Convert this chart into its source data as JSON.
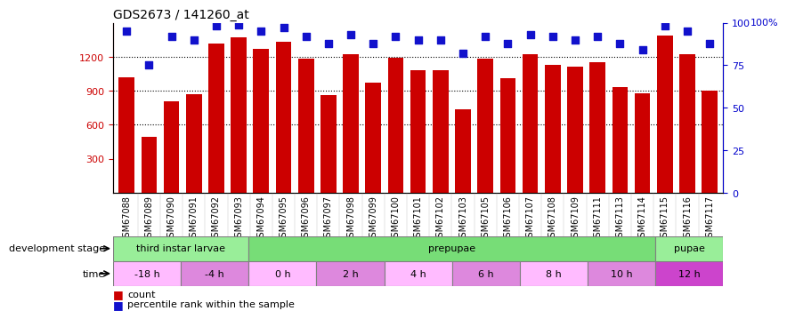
{
  "title": "GDS2673 / 141260_at",
  "samples": [
    "GSM67088",
    "GSM67089",
    "GSM67090",
    "GSM67091",
    "GSM67092",
    "GSM67093",
    "GSM67094",
    "GSM67095",
    "GSM67096",
    "GSM67097",
    "GSM67098",
    "GSM67099",
    "GSM67100",
    "GSM67101",
    "GSM67102",
    "GSM67103",
    "GSM67105",
    "GSM67106",
    "GSM67107",
    "GSM67108",
    "GSM67109",
    "GSM67111",
    "GSM67113",
    "GSM67114",
    "GSM67115",
    "GSM67116",
    "GSM67117"
  ],
  "counts": [
    1020,
    490,
    810,
    870,
    1320,
    1370,
    1270,
    1330,
    1180,
    860,
    1220,
    970,
    1190,
    1080,
    1080,
    740,
    1180,
    1010,
    1220,
    1130,
    1110,
    1150,
    930,
    880,
    1390,
    1220,
    900
  ],
  "percentile_ranks": [
    95,
    75,
    92,
    90,
    98,
    99,
    95,
    97,
    92,
    88,
    93,
    88,
    92,
    90,
    90,
    82,
    92,
    88,
    93,
    92,
    90,
    92,
    88,
    84,
    98,
    95,
    88
  ],
  "bar_color": "#cc0000",
  "dot_color": "#1111cc",
  "ylim_left": [
    0,
    1500
  ],
  "ylim_right": [
    0,
    100
  ],
  "yticks_left": [
    300,
    600,
    900,
    1200
  ],
  "yticks_right": [
    0,
    25,
    50,
    75,
    100
  ],
  "grid_dotted_at": [
    600,
    900,
    1200
  ],
  "dev_stage_row": [
    {
      "label": "third instar larvae",
      "start": 0,
      "end": 6,
      "color": "#99ee99"
    },
    {
      "label": "prepupae",
      "start": 6,
      "end": 24,
      "color": "#77dd77"
    },
    {
      "label": "pupae",
      "start": 24,
      "end": 27,
      "color": "#99ee99"
    }
  ],
  "time_row": [
    {
      "label": "-18 h",
      "start": 0,
      "end": 3,
      "color": "#ffbbff"
    },
    {
      "label": "-4 h",
      "start": 3,
      "end": 6,
      "color": "#dd88dd"
    },
    {
      "label": "0 h",
      "start": 6,
      "end": 9,
      "color": "#ffbbff"
    },
    {
      "label": "2 h",
      "start": 9,
      "end": 12,
      "color": "#dd88dd"
    },
    {
      "label": "4 h",
      "start": 12,
      "end": 15,
      "color": "#ffbbff"
    },
    {
      "label": "6 h",
      "start": 15,
      "end": 18,
      "color": "#dd88dd"
    },
    {
      "label": "8 h",
      "start": 18,
      "end": 21,
      "color": "#ffbbff"
    },
    {
      "label": "10 h",
      "start": 21,
      "end": 24,
      "color": "#dd88dd"
    },
    {
      "label": "12 h",
      "start": 24,
      "end": 27,
      "color": "#cc44cc"
    }
  ],
  "background_color": "#ffffff",
  "tick_label_color_left": "#cc0000",
  "tick_label_color_right": "#0000cc",
  "xticklabel_bg": "#dddddd"
}
